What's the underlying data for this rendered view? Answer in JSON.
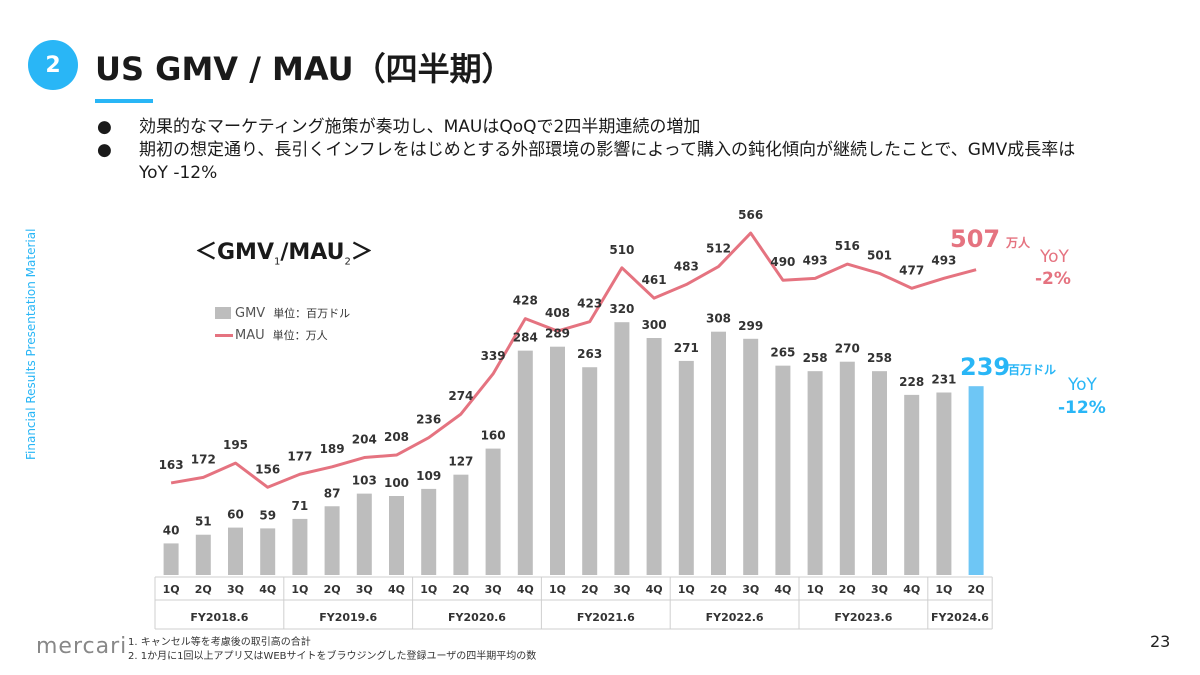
{
  "header": {
    "number": "2",
    "title": "US GMV / MAU（四半期）"
  },
  "bullets": [
    "効果的なマーケティング施策が奏功し、MAUはQoQで2四半期連続の増加",
    "期初の想定通り、長引くインフレをはじめとする外部環境の影響によって購入の鈍化傾向が継続したことで、GMV成長率はYoY -12%"
  ],
  "bullet_marker": "●",
  "side_label": "Financial Results Presentation Material",
  "chart_title": {
    "open": "＜GMV",
    "sup1": "1",
    "sep": "/MAU",
    "sup2": "2",
    "close": "＞"
  },
  "legend": {
    "gmv_name": "GMV",
    "gmv_unit": "単位：百万ドル",
    "mau_name": "MAU",
    "mau_unit": "単位：万人"
  },
  "callouts": {
    "mau_value": "507",
    "mau_unit": "万人",
    "mau_yoy_label": "YoY",
    "mau_yoy_value": "-2%",
    "gmv_value": "239",
    "gmv_unit": "百万ドル",
    "gmv_yoy_label": "YoY",
    "gmv_yoy_value": "-12%"
  },
  "colors": {
    "accent": "#29b6f6",
    "bar": "#bdbdbd",
    "bar_highlight": "#6ec6f5",
    "line": "#e57380"
  },
  "chart_data": {
    "type": "bar",
    "title": "＜GMV1/MAU2＞",
    "categories": [
      "1Q",
      "2Q",
      "3Q",
      "4Q",
      "1Q",
      "2Q",
      "3Q",
      "4Q",
      "1Q",
      "2Q",
      "3Q",
      "4Q",
      "1Q",
      "2Q",
      "3Q",
      "4Q",
      "1Q",
      "2Q",
      "3Q",
      "4Q",
      "1Q",
      "2Q",
      "3Q",
      "4Q",
      "1Q",
      "2Q"
    ],
    "fiscal_years": [
      {
        "label": "FY2018.6",
        "count": 4
      },
      {
        "label": "FY2019.6",
        "count": 4
      },
      {
        "label": "FY2020.6",
        "count": 4
      },
      {
        "label": "FY2021.6",
        "count": 4
      },
      {
        "label": "FY2022.6",
        "count": 4
      },
      {
        "label": "FY2023.6",
        "count": 4
      },
      {
        "label": "FY2024.6",
        "count": 2
      }
    ],
    "series": [
      {
        "name": "GMV",
        "kind": "bar",
        "unit": "百万ドル",
        "values": [
          40,
          51,
          60,
          59,
          71,
          87,
          103,
          100,
          109,
          127,
          160,
          284,
          289,
          263,
          320,
          300,
          271,
          308,
          299,
          265,
          258,
          270,
          258,
          228,
          231,
          239
        ]
      },
      {
        "name": "MAU",
        "kind": "line",
        "unit": "万人",
        "values": [
          163,
          172,
          195,
          156,
          177,
          189,
          204,
          208,
          236,
          274,
          339,
          428,
          408,
          423,
          510,
          461,
          483,
          512,
          566,
          490,
          493,
          516,
          501,
          477,
          493,
          507
        ]
      }
    ],
    "highlight_index": 25
  },
  "footer": {
    "logo": "mercari",
    "notes": [
      "1. キャンセル等を考慮後の取引高の合計",
      "2. 1か月に1回以上アプリ又はWEBサイトをブラウジングした登録ユーザの四半期平均の数"
    ],
    "page": "23"
  }
}
